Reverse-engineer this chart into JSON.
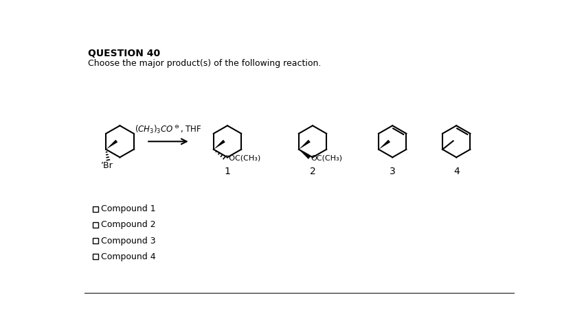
{
  "title": "QUESTION 40",
  "subtitle": "Choose the major product(s) of the following reaction.",
  "reagent_line1": "(CH₃)₃COΘ, THF",
  "background_color": "#ffffff",
  "choices": [
    "Compound 1",
    "Compound 2",
    "Compound 3",
    "Compound 4"
  ],
  "label1_sub": "’’OC(CH₃)",
  "label2_sub": "OC(CH₃)",
  "reactant_label": "’Br",
  "ring_r": 30,
  "fig_w": 8.5,
  "fig_h": 4.87
}
